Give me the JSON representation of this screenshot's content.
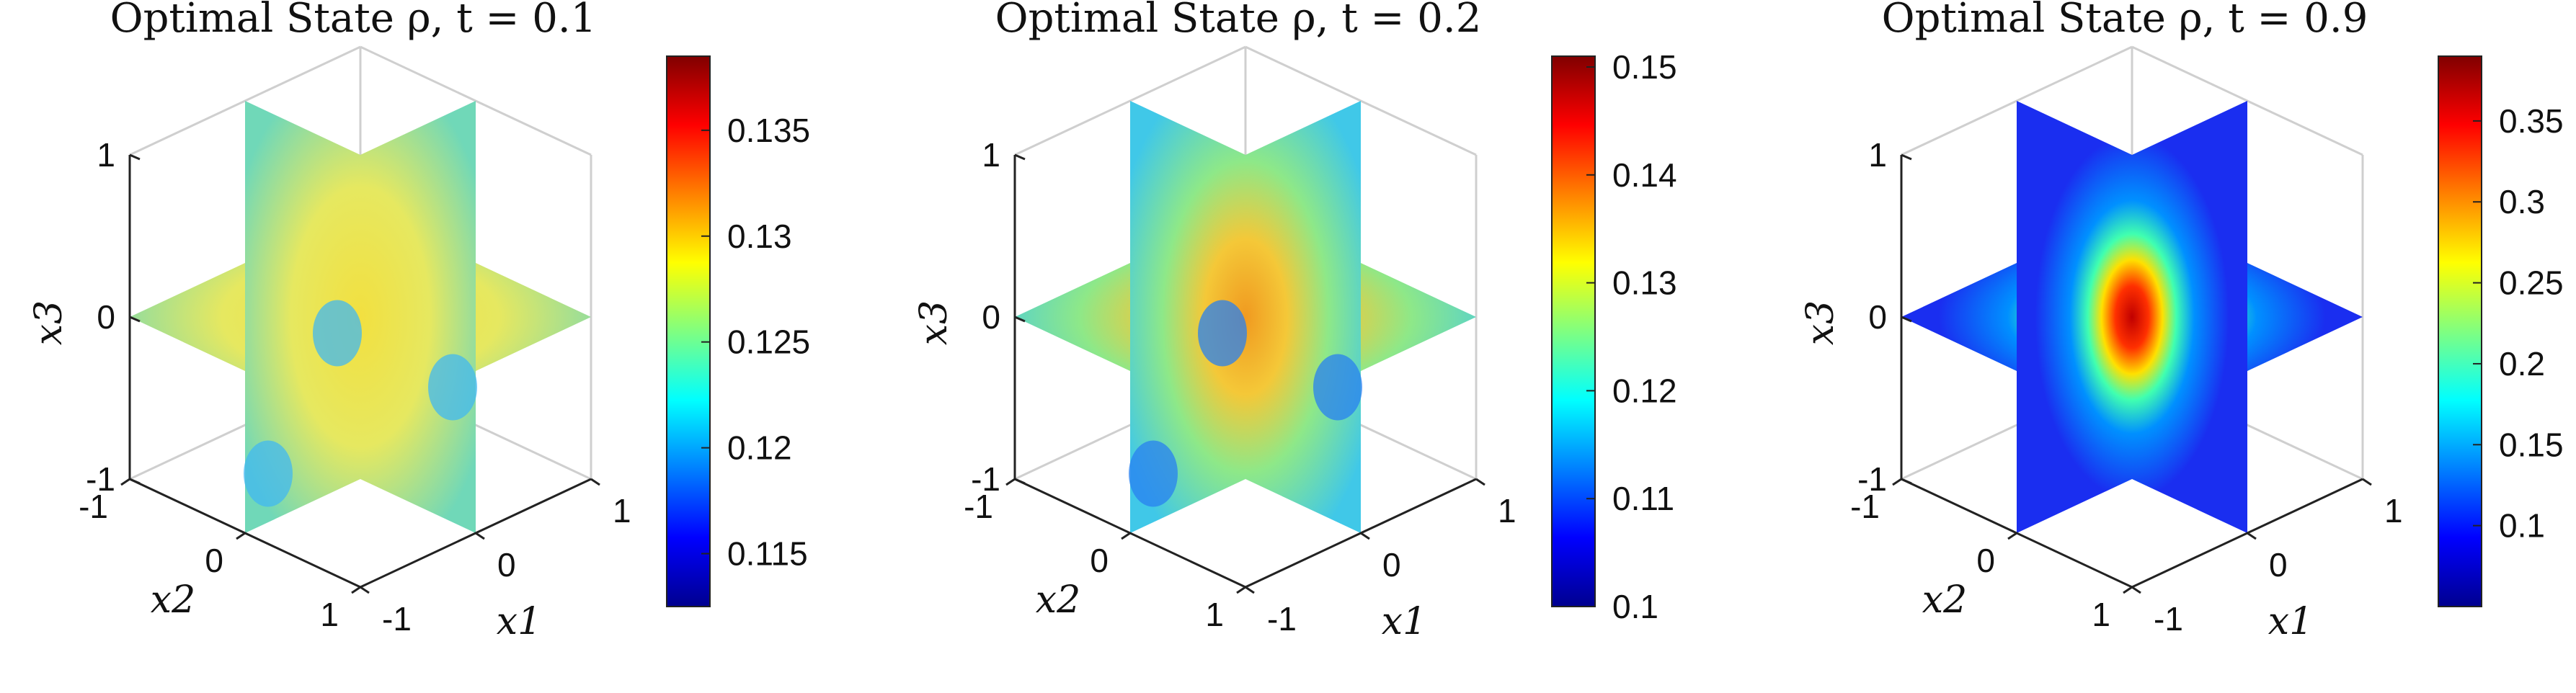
{
  "chart_data": [
    {
      "type": "slice-volume",
      "title": "Optimal State ρ, t = 0.1",
      "xlabel": "x1",
      "ylabel": "x2",
      "zlabel": "x3",
      "xlim": [
        -1,
        1
      ],
      "ylim": [
        -1,
        1
      ],
      "zlim": [
        -1,
        1
      ],
      "xticks": [
        "-1",
        "0",
        "1"
      ],
      "yticks": [
        "-1",
        "0",
        "1"
      ],
      "zticks": [
        "-1",
        "0",
        "1"
      ],
      "slices": [
        "x1=0",
        "x2=0",
        "x3=0"
      ],
      "colorbar": {
        "colormap": "jet",
        "range": [
          0.1125,
          0.1385
        ],
        "ticks": [
          0.115,
          0.12,
          0.125,
          0.13,
          0.135
        ]
      },
      "description": "mostly yellow-green; blue minima near lower face edges, orange-red ridges along slice intersections"
    },
    {
      "type": "slice-volume",
      "title": "Optimal State ρ, t = 0.2",
      "xlabel": "x1",
      "ylabel": "x2",
      "zlabel": "x3",
      "xlim": [
        -1,
        1
      ],
      "ylim": [
        -1,
        1
      ],
      "zlim": [
        -1,
        1
      ],
      "xticks": [
        "-1",
        "0",
        "1"
      ],
      "yticks": [
        "-1",
        "0",
        "1"
      ],
      "zticks": [
        "-1",
        "0",
        "1"
      ],
      "slices": [
        "x1=0",
        "x2=0",
        "x3=0"
      ],
      "colorbar": {
        "colormap": "jet",
        "range": [
          0.1,
          0.151
        ],
        "ticks": [
          0.1,
          0.11,
          0.12,
          0.13,
          0.14,
          0.15
        ]
      },
      "description": "orange triangular maximum near center, cyan/blue minima near lower edges"
    },
    {
      "type": "slice-volume",
      "title": "Optimal State ρ, t = 0.9",
      "xlabel": "x1",
      "ylabel": "x2",
      "zlabel": "x3",
      "xlim": [
        -1,
        1
      ],
      "ylim": [
        -1,
        1
      ],
      "zlim": [
        -1,
        1
      ],
      "xticks": [
        "-1",
        "0",
        "1"
      ],
      "yticks": [
        "-1",
        "0",
        "1"
      ],
      "zticks": [
        "-1",
        "0",
        "1"
      ],
      "slices": [
        "x1=0",
        "x2=0",
        "x3=0"
      ],
      "colorbar": {
        "colormap": "jet",
        "range": [
          0.05,
          0.39
        ],
        "ticks": [
          0.1,
          0.15,
          0.2,
          0.25,
          0.3,
          0.35
        ]
      },
      "description": "sharp red peak concentrated at center, dark blue elsewhere"
    }
  ]
}
